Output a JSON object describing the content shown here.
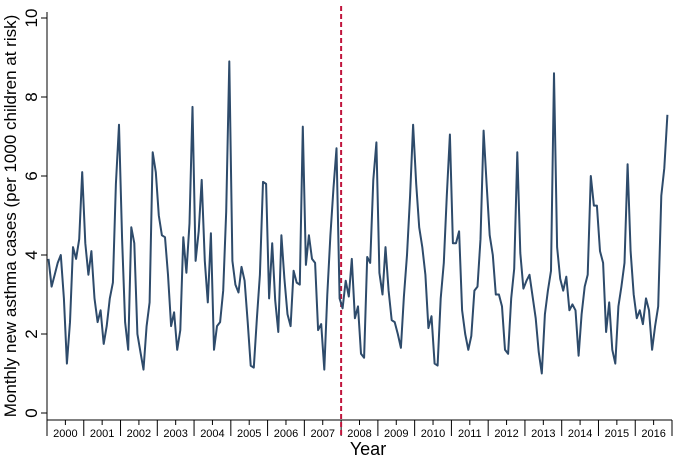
{
  "chart_data": {
    "type": "line",
    "title": "",
    "xlabel": "Year",
    "ylabel": "Monthly new asthma cases (per 1000 children at risk)",
    "xlim": [
      2000,
      2017
    ],
    "ylim": [
      0,
      10
    ],
    "yticks": [
      0,
      2,
      4,
      6,
      8,
      10
    ],
    "year_labels": [
      "2000",
      "2001",
      "2002",
      "2003",
      "2004",
      "2005",
      "2006",
      "2007",
      "2008",
      "2009",
      "2010",
      "2011",
      "2012",
      "2013",
      "2014",
      "2015",
      "2016"
    ],
    "grid": false,
    "legend": "none",
    "line_color": "#2e4b6b",
    "reference_line": {
      "x": 2008,
      "color": "#c0143c",
      "style": "dashed"
    },
    "series": [
      {
        "values": [
          3.9,
          3.2,
          3.5,
          3.8,
          4.0,
          2.9,
          1.25,
          2.3,
          4.2,
          3.9,
          4.4,
          6.1,
          4.3,
          3.5,
          4.1,
          2.9,
          2.3,
          2.6,
          1.75,
          2.2,
          2.9,
          3.3,
          5.8,
          7.3,
          4.4,
          2.3,
          1.6,
          4.7,
          4.3,
          2.0,
          1.55,
          1.1,
          2.2,
          2.8,
          6.6,
          6.1,
          5.0,
          4.5,
          4.45,
          3.5,
          2.2,
          2.55,
          1.6,
          2.1,
          4.45,
          3.55,
          4.8,
          7.75,
          3.85,
          4.6,
          5.9,
          3.85,
          2.8,
          4.55,
          1.6,
          2.2,
          2.3,
          3.1,
          5.1,
          8.9,
          3.85,
          3.25,
          3.05,
          3.7,
          3.35,
          2.3,
          1.2,
          1.15,
          2.4,
          3.5,
          5.85,
          5.8,
          2.9,
          4.3,
          2.85,
          2.05,
          4.5,
          3.4,
          2.5,
          2.2,
          3.6,
          3.3,
          3.25,
          7.25,
          3.75,
          4.5,
          3.9,
          3.8,
          2.1,
          2.25,
          1.1,
          3.0,
          4.5,
          5.7,
          6.7,
          2.9,
          2.65,
          3.35,
          2.95,
          3.9,
          2.4,
          2.7,
          1.5,
          1.4,
          3.95,
          3.8,
          5.9,
          6.85,
          3.55,
          3.0,
          4.2,
          3.1,
          2.35,
          2.3,
          2.0,
          1.65,
          2.95,
          4.0,
          5.5,
          7.3,
          5.8,
          4.7,
          4.2,
          3.5,
          2.15,
          2.45,
          1.25,
          1.2,
          2.9,
          3.8,
          5.5,
          7.05,
          4.3,
          4.3,
          4.6,
          2.6,
          2.0,
          1.6,
          1.95,
          3.1,
          3.2,
          4.4,
          7.15,
          5.8,
          4.5,
          4.0,
          3.0,
          3.0,
          2.7,
          1.6,
          1.5,
          2.9,
          3.65,
          6.6,
          4.05,
          3.15,
          3.35,
          3.5,
          2.95,
          2.4,
          1.55,
          1.0,
          2.5,
          3.1,
          3.6,
          8.6,
          4.2,
          3.4,
          3.1,
          3.45,
          2.6,
          2.75,
          2.6,
          1.45,
          2.5,
          3.2,
          3.5,
          6.0,
          5.25,
          5.25,
          4.1,
          3.8,
          2.05,
          2.8,
          1.6,
          1.25,
          2.7,
          3.2,
          3.8,
          6.3,
          4.1,
          3.0,
          2.4,
          2.6,
          2.25,
          2.9,
          2.6,
          1.6,
          2.2,
          2.7,
          5.5,
          6.2,
          7.55
        ]
      }
    ]
  }
}
